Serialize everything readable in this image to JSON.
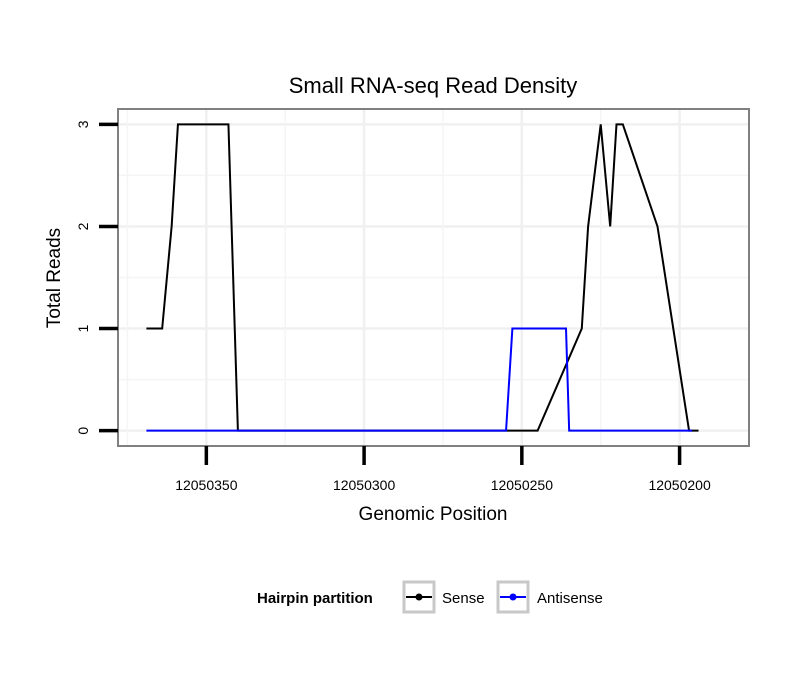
{
  "chart_data": {
    "type": "line",
    "title": "Small RNA-seq Read Density",
    "xlabel": "Genomic Position",
    "ylabel": "Total Reads",
    "xlim": [
      12050378,
      12050178
    ],
    "x_reversed": true,
    "ylim": [
      -0.15,
      3.15
    ],
    "x_ticks": [
      12050350,
      12050300,
      12050250,
      12050200
    ],
    "x_tick_labels": [
      "12050350",
      "12050300",
      "12050250",
      "12050200"
    ],
    "y_ticks": [
      0,
      1,
      2,
      3
    ],
    "y_tick_labels": [
      "0",
      "1",
      "2",
      "3"
    ],
    "grid": true,
    "legend": {
      "title": "Hairpin partition",
      "position": "bottom"
    },
    "series": [
      {
        "name": "Sense",
        "color": "#000000",
        "x": [
          12050369,
          12050364,
          12050364,
          12050361,
          12050361,
          12050359,
          12050359,
          12050343,
          12050343,
          12050342,
          12050342,
          12050340,
          12050340,
          12050245,
          12050245,
          12050231,
          12050231,
          12050229,
          12050229,
          12050225,
          12050225,
          12050222,
          12050222,
          12050220,
          12050220,
          12050218,
          12050218,
          12050207,
          12050207,
          12050197,
          12050197,
          12050194
        ],
        "y": [
          1,
          1,
          1,
          2,
          2,
          3,
          3,
          3,
          3,
          2,
          2,
          0,
          0,
          0,
          0,
          1,
          1,
          2,
          2,
          3,
          3,
          2,
          2,
          3,
          3,
          3,
          3,
          2,
          2,
          0,
          0,
          0
        ]
      },
      {
        "name": "Antisense",
        "color": "#0000ff",
        "x": [
          12050369,
          12050255,
          12050253,
          12050236,
          12050235,
          12050196
        ],
        "y": [
          0,
          0,
          1,
          1,
          0,
          0
        ]
      }
    ]
  }
}
